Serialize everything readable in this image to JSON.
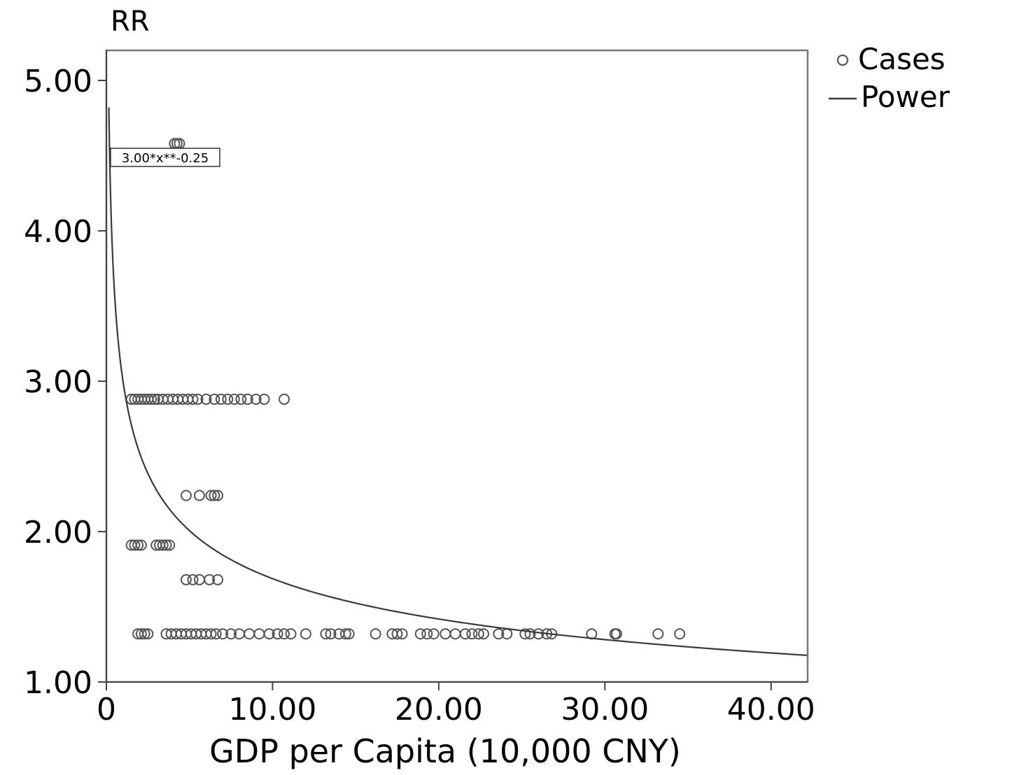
{
  "chart_data": {
    "type": "scatter",
    "ylabel": "RR",
    "xlabel": "GDP per Capita (10,000 CNY)",
    "xlim": [
      0,
      42.2
    ],
    "ylim": [
      1.0,
      5.2
    ],
    "x_ticks": [
      0,
      10,
      20,
      30,
      40
    ],
    "x_tick_labels": [
      "0",
      "10.00",
      "20.00",
      "30.00",
      "40.00"
    ],
    "y_ticks": [
      1,
      2,
      3,
      4,
      5
    ],
    "y_tick_labels": [
      "1.00",
      "2.00",
      "3.00",
      "4.00",
      "5.00"
    ],
    "grid": false,
    "legend": {
      "position": "top-right",
      "entries": [
        {
          "label": "Cases",
          "marker": "circle"
        },
        {
          "label": "Power",
          "marker": "line"
        }
      ]
    },
    "fit": {
      "equation": "3.00*x**-0.25",
      "a": 3.0,
      "b": -0.25,
      "x_start": 0.15,
      "x_end": 42.2
    },
    "series": [
      {
        "name": "Cases",
        "points": [
          [
            4.1,
            4.58
          ],
          [
            4.25,
            4.58
          ],
          [
            4.4,
            4.58
          ],
          [
            1.5,
            2.88
          ],
          [
            1.7,
            2.88
          ],
          [
            1.9,
            2.88
          ],
          [
            2.1,
            2.88
          ],
          [
            2.3,
            2.88
          ],
          [
            2.5,
            2.88
          ],
          [
            2.7,
            2.88
          ],
          [
            2.9,
            2.88
          ],
          [
            3.1,
            2.88
          ],
          [
            3.4,
            2.88
          ],
          [
            3.7,
            2.88
          ],
          [
            4.0,
            2.88
          ],
          [
            4.3,
            2.88
          ],
          [
            4.6,
            2.88
          ],
          [
            4.9,
            2.88
          ],
          [
            5.2,
            2.88
          ],
          [
            5.5,
            2.88
          ],
          [
            6.0,
            2.88
          ],
          [
            6.5,
            2.88
          ],
          [
            6.9,
            2.88
          ],
          [
            7.3,
            2.88
          ],
          [
            7.7,
            2.88
          ],
          [
            8.1,
            2.88
          ],
          [
            8.5,
            2.88
          ],
          [
            9.0,
            2.88
          ],
          [
            9.5,
            2.88
          ],
          [
            10.7,
            2.88
          ],
          [
            4.8,
            2.24
          ],
          [
            5.6,
            2.24
          ],
          [
            6.3,
            2.24
          ],
          [
            6.5,
            2.24
          ],
          [
            6.7,
            2.24
          ],
          [
            1.5,
            1.91
          ],
          [
            1.7,
            1.91
          ],
          [
            1.9,
            1.91
          ],
          [
            2.1,
            1.91
          ],
          [
            3.0,
            1.91
          ],
          [
            3.2,
            1.91
          ],
          [
            3.4,
            1.91
          ],
          [
            3.6,
            1.91
          ],
          [
            3.8,
            1.91
          ],
          [
            4.8,
            1.68
          ],
          [
            5.2,
            1.68
          ],
          [
            5.6,
            1.68
          ],
          [
            6.2,
            1.68
          ],
          [
            6.7,
            1.68
          ],
          [
            1.9,
            1.32
          ],
          [
            2.1,
            1.32
          ],
          [
            2.3,
            1.32
          ],
          [
            2.5,
            1.32
          ],
          [
            3.6,
            1.32
          ],
          [
            3.9,
            1.32
          ],
          [
            4.2,
            1.32
          ],
          [
            4.5,
            1.32
          ],
          [
            4.8,
            1.32
          ],
          [
            5.1,
            1.32
          ],
          [
            5.4,
            1.32
          ],
          [
            5.7,
            1.32
          ],
          [
            6.0,
            1.32
          ],
          [
            6.3,
            1.32
          ],
          [
            6.6,
            1.32
          ],
          [
            7.0,
            1.32
          ],
          [
            7.5,
            1.32
          ],
          [
            8.0,
            1.32
          ],
          [
            8.6,
            1.32
          ],
          [
            9.2,
            1.32
          ],
          [
            9.8,
            1.32
          ],
          [
            10.3,
            1.32
          ],
          [
            10.7,
            1.32
          ],
          [
            11.1,
            1.32
          ],
          [
            12.0,
            1.32
          ],
          [
            13.2,
            1.32
          ],
          [
            13.5,
            1.32
          ],
          [
            14.0,
            1.32
          ],
          [
            14.4,
            1.32
          ],
          [
            14.6,
            1.32
          ],
          [
            16.2,
            1.32
          ],
          [
            17.2,
            1.32
          ],
          [
            17.5,
            1.32
          ],
          [
            17.8,
            1.32
          ],
          [
            18.9,
            1.32
          ],
          [
            19.3,
            1.32
          ],
          [
            19.7,
            1.32
          ],
          [
            20.4,
            1.32
          ],
          [
            21.0,
            1.32
          ],
          [
            21.6,
            1.32
          ],
          [
            22.0,
            1.32
          ],
          [
            22.4,
            1.32
          ],
          [
            22.7,
            1.32
          ],
          [
            23.6,
            1.32
          ],
          [
            24.1,
            1.32
          ],
          [
            25.2,
            1.32
          ],
          [
            25.5,
            1.32
          ],
          [
            26.0,
            1.32
          ],
          [
            26.5,
            1.32
          ],
          [
            26.8,
            1.32
          ],
          [
            29.2,
            1.32
          ],
          [
            30.6,
            1.32
          ],
          [
            30.7,
            1.32
          ],
          [
            33.2,
            1.32
          ],
          [
            34.5,
            1.32
          ]
        ]
      }
    ]
  }
}
